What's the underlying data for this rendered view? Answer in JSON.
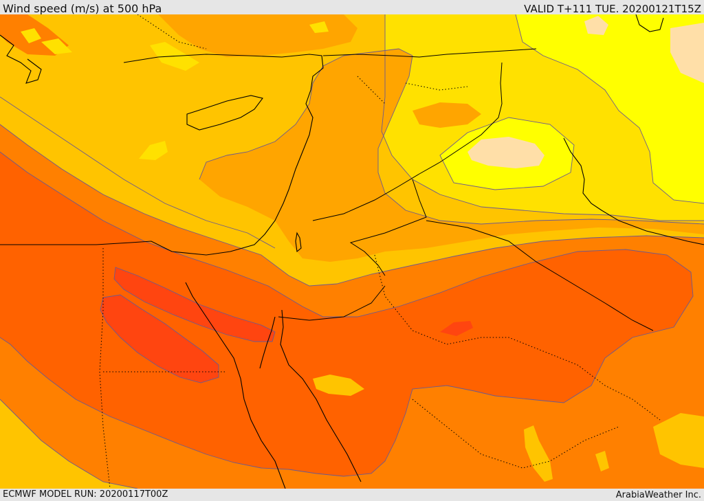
{
  "header": {
    "title": "Wind speed (m/s) at 500 hPa",
    "valid_time": "VALID T+111 TUE. 20200121T15Z"
  },
  "footer": {
    "model_run": "ECMWF MODEL RUN: 20200117T00Z",
    "credit": "ArabiaWeather Inc."
  },
  "map": {
    "field": "wind speed",
    "level": "500 hPa",
    "units": "m/s",
    "palette": {
      "lightest": "#ffdfa8",
      "yellow_bright": "#ffff00",
      "yellow": "#ffe100",
      "gold": "#ffc400",
      "amber": "#ffa500",
      "orange": "#ff8000",
      "dark_orange": "#ff6200",
      "red_orange": "#ff4510"
    },
    "contour_color": "#6b5a8f",
    "coastline_color": "#000000"
  }
}
